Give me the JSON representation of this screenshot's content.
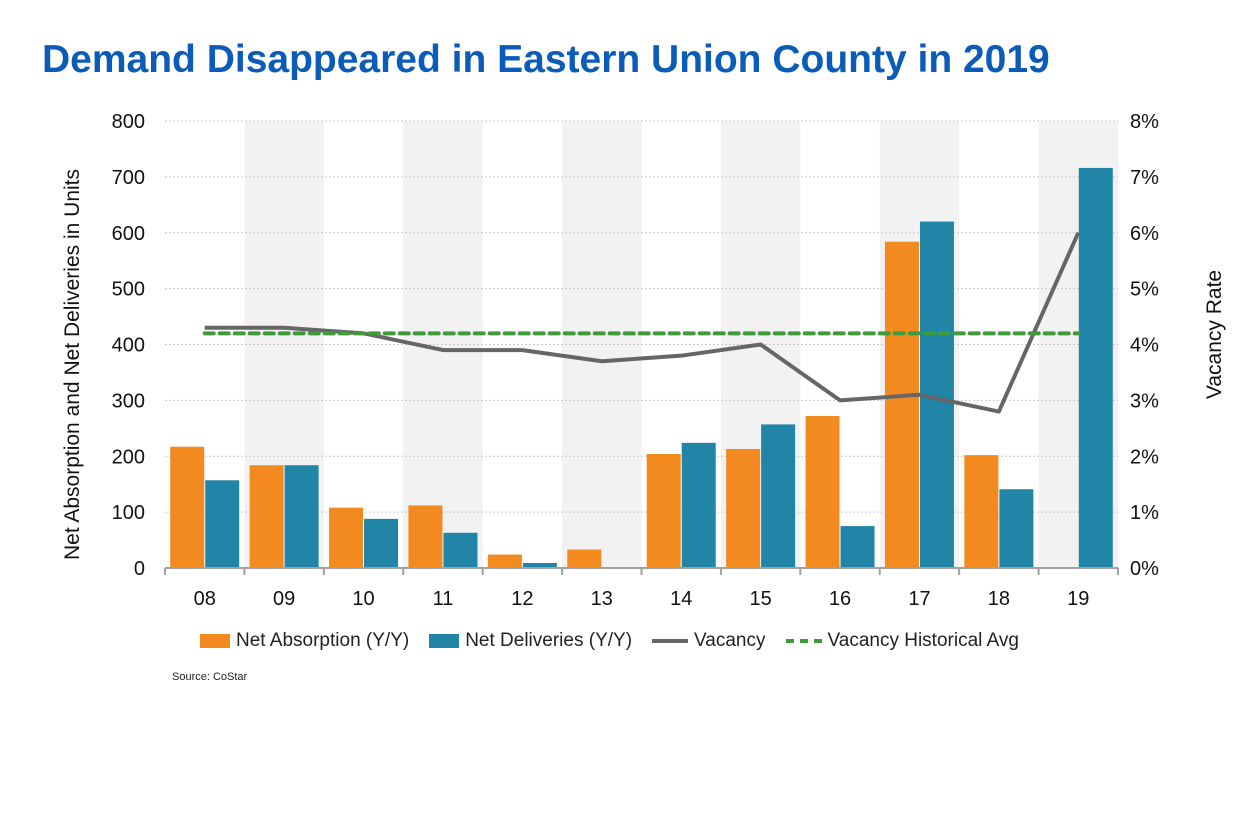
{
  "chart_data": {
    "type": "bar",
    "title": "Demand Disappeared in Eastern Union County in 2019",
    "categories": [
      "08",
      "09",
      "10",
      "11",
      "12",
      "13",
      "14",
      "15",
      "16",
      "17",
      "18",
      "19"
    ],
    "series": [
      {
        "name": "Net Absorption (Y/Y)",
        "type": "bar",
        "axis": "left",
        "color": "#f28a20",
        "values": [
          217,
          184,
          108,
          112,
          24,
          33,
          204,
          213,
          272,
          584,
          202,
          0
        ]
      },
      {
        "name": "Net Deliveries (Y/Y)",
        "type": "bar",
        "axis": "left",
        "color": "#2185a8",
        "values": [
          157,
          184,
          88,
          63,
          9,
          0,
          224,
          257,
          75,
          620,
          141,
          716
        ]
      },
      {
        "name": "Vacancy",
        "type": "line",
        "axis": "right",
        "color": "#666666",
        "values": [
          4.3,
          4.3,
          4.2,
          3.9,
          3.9,
          3.7,
          3.8,
          4.0,
          3.0,
          3.1,
          2.8,
          6.0
        ]
      },
      {
        "name": "Vacancy Historical Avg",
        "type": "line-dashed",
        "axis": "right",
        "color": "#3f9a3a",
        "values": [
          4.2,
          4.2,
          4.2,
          4.2,
          4.2,
          4.2,
          4.2,
          4.2,
          4.2,
          4.2,
          4.2,
          4.2
        ]
      }
    ],
    "ylabel": "Net Absorption and Net Deliveries in Units",
    "ylim": [
      0,
      800
    ],
    "yticks": [
      "0",
      "100",
      "200",
      "300",
      "400",
      "500",
      "600",
      "700",
      "800"
    ],
    "y2label": "Vacancy Rate",
    "y2lim": [
      0,
      8
    ],
    "y2ticks": [
      "0%",
      "1%",
      "2%",
      "3%",
      "4%",
      "5%",
      "6%",
      "7%",
      "8%"
    ],
    "grid": true,
    "legend": "bottom",
    "source": "Source: CoStar"
  }
}
